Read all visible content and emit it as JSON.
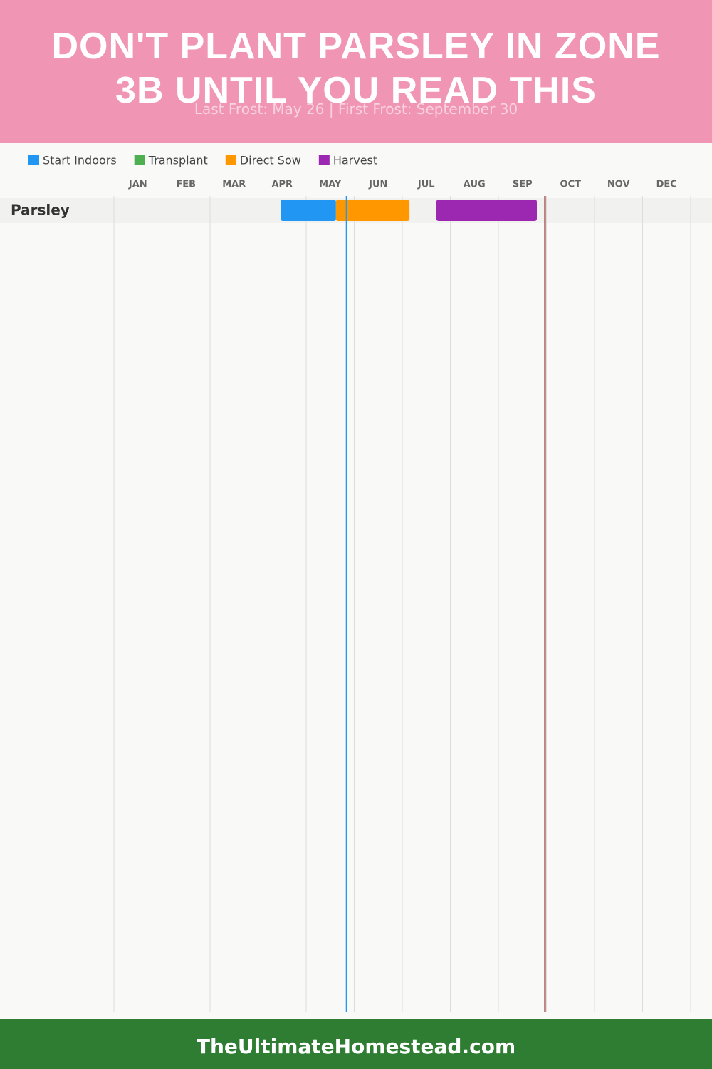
{
  "chart_data": {
    "type": "gantt",
    "title": "DON'T PLANT PARSLEY IN ZONE 3B UNTIL YOU READ THIS",
    "subtitle": "Last Frost: May 26 | First Frost: September 30",
    "categories": [
      "Parsley"
    ],
    "xlim": [
      0,
      12
    ],
    "xticks": [
      {
        "value": 0,
        "label": "JAN"
      },
      {
        "value": 1,
        "label": "FEB"
      },
      {
        "value": 2,
        "label": "MAR"
      },
      {
        "value": 3,
        "label": "APR"
      },
      {
        "value": 4,
        "label": "MAY"
      },
      {
        "value": 5,
        "label": "JUN"
      },
      {
        "value": 6,
        "label": "JUL"
      },
      {
        "value": 7,
        "label": "AUG"
      },
      {
        "value": 8,
        "label": "SEP"
      },
      {
        "value": 9,
        "label": "OCT"
      },
      {
        "value": 10,
        "label": "NOV"
      },
      {
        "value": 11,
        "label": "DEC"
      }
    ],
    "grid": true,
    "series": [
      {
        "name": "Start Indoors",
        "color": "#2196f3",
        "values": [
          [
            3.47,
            4.62
          ]
        ]
      },
      {
        "name": "Transplant",
        "color": "#4caf50",
        "values": [
          null
        ]
      },
      {
        "name": "Direct Sow",
        "color": "#ff9800",
        "values": [
          [
            4.62,
            6.15
          ]
        ]
      },
      {
        "name": "Harvest",
        "color": "#9c27b0",
        "values": [
          [
            6.71,
            8.8
          ]
        ]
      }
    ],
    "frost_lines": [
      {
        "value": 4.84,
        "color": "#2196f3"
      },
      {
        "value": 8.97,
        "color": "#8b1a1a"
      }
    ]
  },
  "footer": "TheUltimateHomestead.com"
}
